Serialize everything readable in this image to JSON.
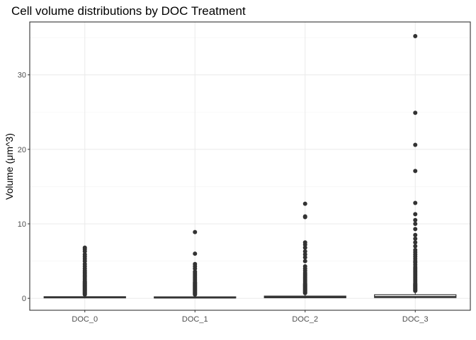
{
  "chart_data": {
    "type": "box",
    "title": "Cell volume distributions by DOC Treatment",
    "xlabel": "",
    "ylabel": "Volume (μm^3)",
    "ylim": [
      -1.6,
      37.1
    ],
    "yticks": [
      0,
      10,
      20,
      30
    ],
    "grid": true,
    "legend": "none",
    "colors": {
      "panel_border": "#333333",
      "grid_major": "#ebebeb",
      "grid_minor": "#f5f5f5",
      "box": "#333333",
      "outlier": "#333333"
    },
    "categories": [
      "DOC_0",
      "DOC_1",
      "DOC_2",
      "DOC_3"
    ],
    "boxes": [
      {
        "category": "DOC_0",
        "q1": 0.06,
        "median": 0.12,
        "q3": 0.22,
        "whisker_low": 0.0,
        "whisker_high": 0.45,
        "outliers": [
          0.5,
          0.6,
          0.7,
          0.8,
          0.9,
          1.0,
          1.1,
          1.2,
          1.3,
          1.4,
          1.5,
          1.6,
          1.7,
          1.8,
          1.9,
          2.0,
          2.1,
          2.2,
          2.3,
          2.5,
          2.7,
          2.9,
          3.1,
          3.3,
          3.5,
          3.7,
          4.0,
          4.3,
          4.6,
          5.0,
          5.3,
          5.6,
          5.9,
          6.3,
          6.6,
          6.8
        ]
      },
      {
        "category": "DOC_1",
        "q1": 0.05,
        "median": 0.1,
        "q3": 0.2,
        "whisker_low": 0.0,
        "whisker_high": 0.4,
        "outliers": [
          0.5,
          0.6,
          0.7,
          0.8,
          0.9,
          1.0,
          1.1,
          1.2,
          1.3,
          1.4,
          1.5,
          1.6,
          1.7,
          1.8,
          1.9,
          2.0,
          2.1,
          2.2,
          2.4,
          2.6,
          2.8,
          3.0,
          3.2,
          3.4,
          3.6,
          4.0,
          4.3,
          4.6,
          6.0,
          8.9
        ]
      },
      {
        "category": "DOC_2",
        "q1": 0.08,
        "median": 0.16,
        "q3": 0.3,
        "whisker_low": 0.0,
        "whisker_high": 0.6,
        "outliers": [
          0.7,
          0.8,
          0.9,
          1.0,
          1.1,
          1.2,
          1.3,
          1.4,
          1.5,
          1.6,
          1.7,
          1.8,
          1.9,
          2.0,
          2.2,
          2.4,
          2.6,
          2.8,
          3.0,
          3.2,
          3.4,
          3.7,
          4.0,
          4.3,
          5.0,
          5.5,
          5.9,
          6.3,
          6.8,
          7.2,
          7.5,
          10.9,
          11.0,
          12.7
        ]
      },
      {
        "category": "DOC_3",
        "q1": 0.1,
        "median": 0.2,
        "q3": 0.48,
        "whisker_low": 0.0,
        "whisker_high": 0.9,
        "outliers": [
          1.0,
          1.1,
          1.2,
          1.3,
          1.4,
          1.5,
          1.6,
          1.7,
          1.8,
          1.9,
          2.0,
          2.2,
          2.4,
          2.6,
          2.8,
          3.0,
          3.2,
          3.4,
          3.6,
          3.8,
          4.0,
          4.2,
          4.5,
          4.8,
          5.0,
          5.3,
          5.6,
          5.9,
          6.2,
          6.5,
          7.0,
          7.5,
          8.0,
          8.5,
          9.3,
          10.0,
          10.5,
          11.3,
          12.8,
          17.1,
          20.6,
          24.9,
          35.2
        ]
      }
    ]
  }
}
